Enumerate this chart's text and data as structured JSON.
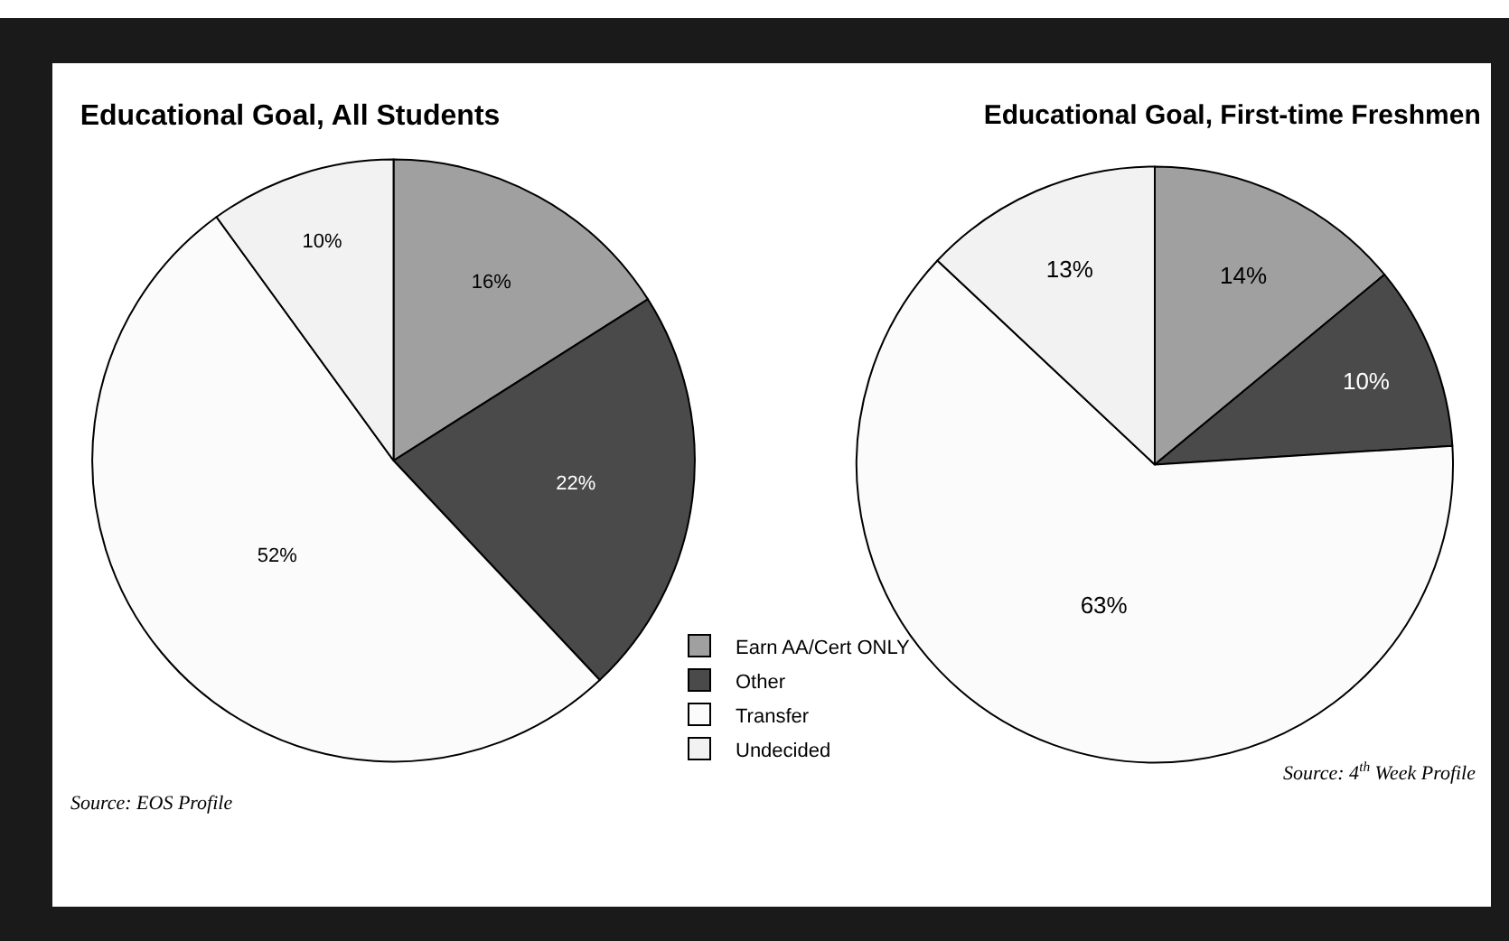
{
  "chart_data": [
    {
      "type": "pie",
      "title": "Educational Goal, All Students",
      "categories": [
        "Earn AA/Cert ONLY",
        "Other",
        "Transfer",
        "Undecided"
      ],
      "values": [
        16,
        22,
        52,
        10
      ],
      "value_labels": [
        "16%",
        "22%",
        "52%",
        "10%"
      ],
      "colors": [
        "#a0a0a0",
        "#4a4a4a",
        "#fbfbfb",
        "#f2f2f2"
      ],
      "legend": "right",
      "annotations": [
        "Source: EOS Profile"
      ]
    },
    {
      "type": "pie",
      "title": "Educational Goal, First-time Freshmen",
      "categories": [
        null,
        null,
        null,
        null
      ],
      "values": [
        14,
        10,
        63,
        13
      ],
      "value_labels": [
        "14%",
        "10%",
        "63%",
        "13%"
      ],
      "colors": [
        "#a0a0a0",
        "#4a4a4a",
        "#fbfbfb",
        "#f2f2f2"
      ],
      "annotations": [
        "Source: 4$^{th}$ Week Profile"
      ]
    }
  ]
}
